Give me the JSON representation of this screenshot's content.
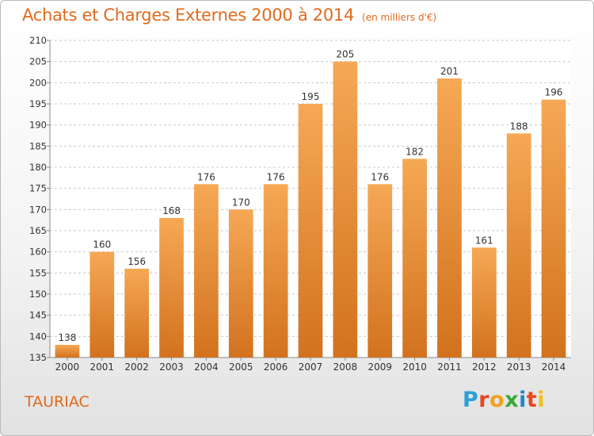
{
  "header": {
    "title": "Achats et Charges Externes 2000 à 2014",
    "unit": "(en milliers d'€)"
  },
  "footer": {
    "commune": "TAURIAC",
    "logo_letters": [
      "P",
      "r",
      "o",
      "x",
      "i",
      "t",
      "i"
    ],
    "logo_colors": [
      "#2a9fd8",
      "#e8461d",
      "#f0a21a",
      "#38a935",
      "#1d86cf",
      "#e8461d",
      "#f0c11a"
    ]
  },
  "colors": {
    "bar_light": "#f6a855",
    "bar_dark": "#d2721e",
    "grid": "#c8c8c8",
    "axis": "#8a8a8a",
    "text": "#333333",
    "accent": "#e06a1c"
  },
  "chart_data": {
    "type": "bar",
    "categories": [
      "2000",
      "2001",
      "2002",
      "2003",
      "2004",
      "2005",
      "2006",
      "2007",
      "2008",
      "2009",
      "2010",
      "2011",
      "2012",
      "2013",
      "2014"
    ],
    "values": [
      138,
      160,
      156,
      168,
      176,
      170,
      176,
      195,
      205,
      176,
      182,
      201,
      161,
      188,
      196
    ],
    "title": "Achats et Charges Externes 2000 à 2014",
    "subtitle": "(en milliers d'€)",
    "ylim": [
      135,
      210
    ],
    "yticks": [
      135,
      140,
      145,
      150,
      155,
      160,
      165,
      170,
      175,
      180,
      185,
      190,
      195,
      200,
      205,
      210
    ],
    "grid": true
  }
}
